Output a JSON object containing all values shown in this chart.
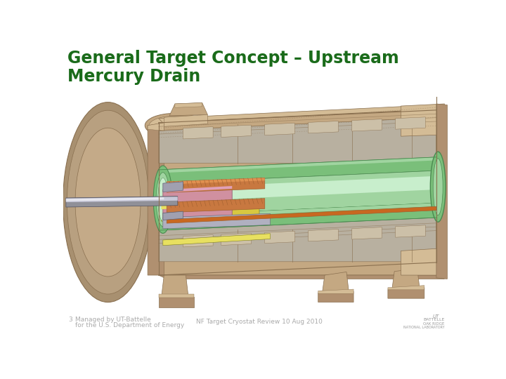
{
  "title_line1": "General Target Concept – Upstream",
  "title_line2": "Mercury Drain",
  "title_color": "#1a6b1a",
  "title_fontsize": 17,
  "bg_color": "#ffffff",
  "footer_left_number": "3",
  "footer_left_line1": "Managed by UT-Battelle",
  "footer_left_line2": "for the U.S. Department of Energy",
  "footer_center": "NF Target Cryostat Review 10 Aug 2010",
  "footer_color": "#aaaaaa",
  "footer_fontsize": 6.5,
  "tan_body": "#c4a882",
  "tan_face": "#d4bc96",
  "tan_shadow": "#b09070",
  "tan_dark": "#8a7050",
  "green_outer": "#7abf7a",
  "green_mid": "#a0d4a0",
  "green_light": "#c8eecc",
  "green_dark": "#4a8a50",
  "orange_part": "#c87840",
  "orange_dark": "#a06030",
  "yellow_part": "#d8c840",
  "yellow_light": "#e8e060",
  "pink_part": "#d090a0",
  "gray_beam": "#909098",
  "gray_light": "#c8c8d8",
  "silver": "#d0d8e0",
  "orange_line": "#c86820"
}
